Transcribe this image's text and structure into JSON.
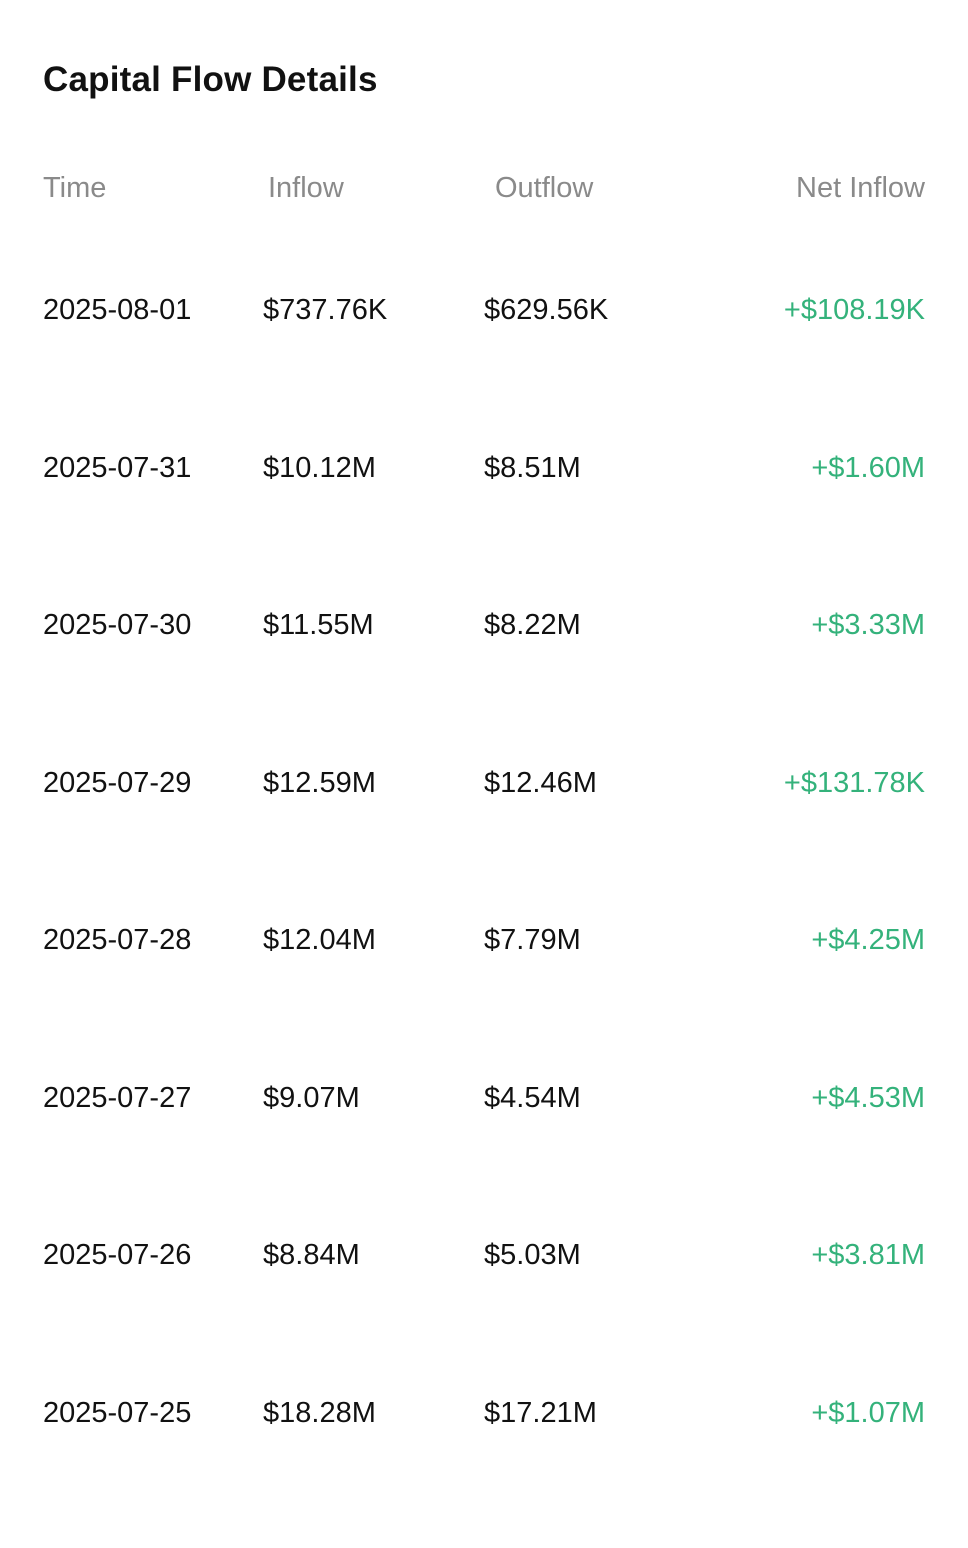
{
  "title": "Capital Flow Details",
  "colors": {
    "positive": "#34b27b",
    "header_text": "#8a8a8a",
    "body_text": "#111111"
  },
  "columns": {
    "time": "Time",
    "inflow": "Inflow",
    "outflow": "Outflow",
    "net_inflow": "Net Inflow"
  },
  "rows": [
    {
      "time": "2025-08-01",
      "inflow": "$737.76K",
      "outflow": "$629.56K",
      "net": "+$108.19K"
    },
    {
      "time": "2025-07-31",
      "inflow": "$10.12M",
      "outflow": "$8.51M",
      "net": "+$1.60M"
    },
    {
      "time": "2025-07-30",
      "inflow": "$11.55M",
      "outflow": "$8.22M",
      "net": "+$3.33M"
    },
    {
      "time": "2025-07-29",
      "inflow": "$12.59M",
      "outflow": "$12.46M",
      "net": "+$131.78K"
    },
    {
      "time": "2025-07-28",
      "inflow": "$12.04M",
      "outflow": "$7.79M",
      "net": "+$4.25M"
    },
    {
      "time": "2025-07-27",
      "inflow": "$9.07M",
      "outflow": "$4.54M",
      "net": "+$4.53M"
    },
    {
      "time": "2025-07-26",
      "inflow": "$8.84M",
      "outflow": "$5.03M",
      "net": "+$3.81M"
    },
    {
      "time": "2025-07-25",
      "inflow": "$18.28M",
      "outflow": "$17.21M",
      "net": "+$1.07M"
    }
  ]
}
